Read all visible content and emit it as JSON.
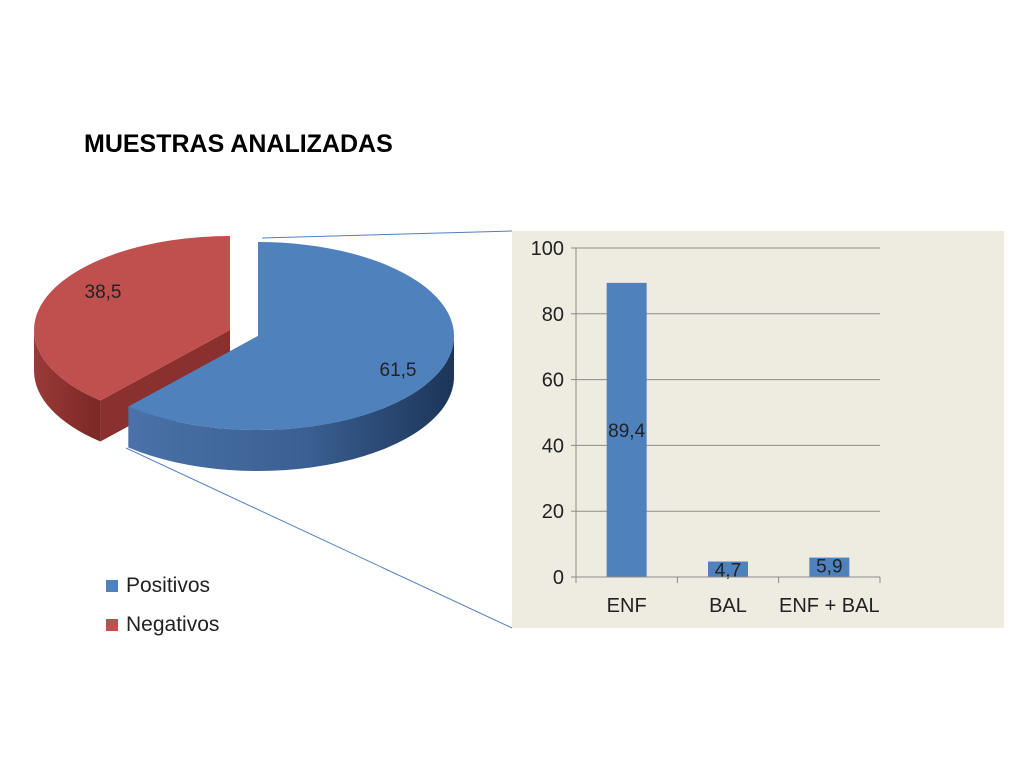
{
  "chart_data": [
    {
      "type": "pie",
      "title": "MUESTRAS ANALIZADAS",
      "slices": [
        {
          "name": "Positivos",
          "value": 61.5,
          "label": "61,5",
          "color": "#4f81bd"
        },
        {
          "name": "Negativos",
          "value": 38.5,
          "label": "38,5",
          "color": "#c0504d"
        }
      ],
      "legend_position": "bottom-left",
      "exploded": "Negativos",
      "style": "3d"
    },
    {
      "type": "bar",
      "categories": [
        "ENF",
        "BAL",
        "ENF + BAL"
      ],
      "values": [
        89.4,
        4.7,
        5.9
      ],
      "data_labels": [
        "89,4",
        "4,7",
        "5,9"
      ],
      "ylim": [
        0,
        100
      ],
      "yticks": [
        "0",
        "20",
        "40",
        "60",
        "80",
        "100"
      ],
      "grid": true,
      "color": "#4f81bd",
      "background": "#eeebe1"
    }
  ]
}
